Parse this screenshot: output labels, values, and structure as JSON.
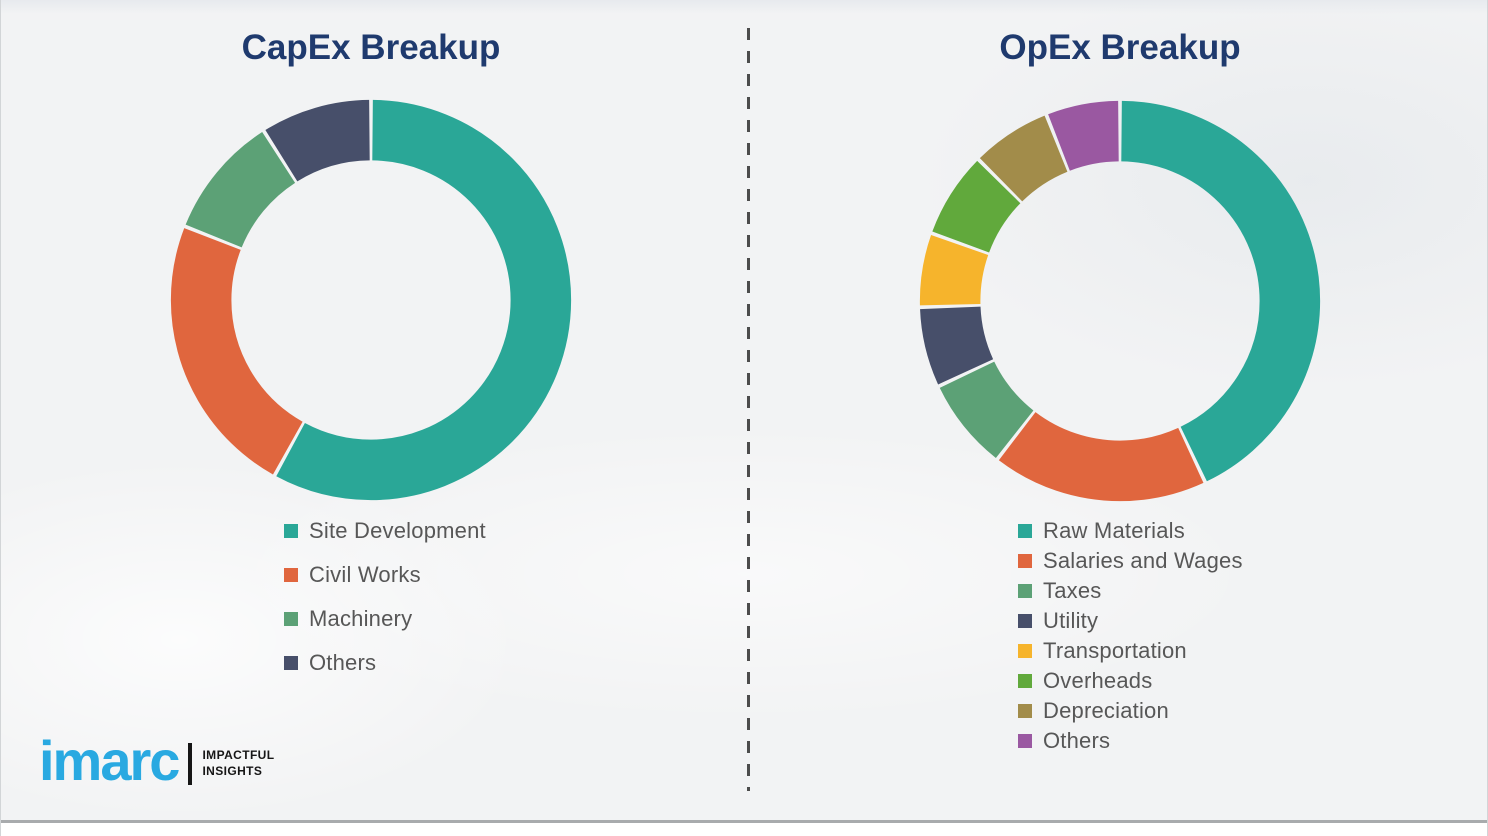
{
  "theme": {
    "background": "#f2f3f4",
    "title_color": "#1f3a6e",
    "legend_text_color": "#575757",
    "divider_color": "#4c4c4c",
    "logo_blue": "#29a9e1",
    "logo_dark": "#161616",
    "frame_line": "#a8abad"
  },
  "chart_data": [
    {
      "type": "donut",
      "title": "CapEx Breakup",
      "units": "percent",
      "start_angle_deg": 0,
      "direction": "clockwise",
      "legend_position": "bottom-left",
      "categories": [
        "Site Development",
        "Civil Works",
        "Machinery",
        "Others"
      ],
      "values": [
        58,
        23,
        10,
        9
      ],
      "colors": [
        "#2aa797",
        "#e0663e",
        "#5ca176",
        "#474f6a"
      ]
    },
    {
      "type": "donut",
      "title": "OpEx Breakup",
      "units": "percent",
      "start_angle_deg": 0,
      "direction": "clockwise",
      "legend_position": "bottom-left",
      "categories": [
        "Raw Materials",
        "Salaries and Wages",
        "Taxes",
        "Utility",
        "Transportation",
        "Overheads",
        "Depreciation",
        "Others"
      ],
      "values": [
        43,
        17.5,
        7.5,
        6.5,
        6,
        7,
        6.5,
        6
      ],
      "colors": [
        "#2aa797",
        "#e0663e",
        "#5ca176",
        "#474f6a",
        "#f6b42c",
        "#61a93c",
        "#a28c4a",
        "#9a58a1"
      ]
    }
  ],
  "logo": {
    "brand": "imarc",
    "tagline_line1": "IMPACTFUL",
    "tagline_line2": "INSIGHTS"
  }
}
